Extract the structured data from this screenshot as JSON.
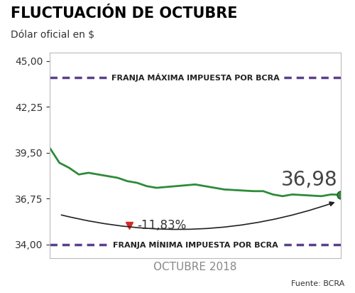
{
  "chart_data": {
    "type": "line",
    "title": "FLUCTUACIÓN DE OCTUBRE",
    "subtitle": "Dólar oficial en $",
    "x_label": "OCTUBRE 2018",
    "source": "Fuente: BCRA",
    "annotation": "-11,83%",
    "x": [
      1,
      2,
      3,
      4,
      5,
      8,
      9,
      10,
      11,
      12,
      16,
      17,
      18,
      19,
      22,
      23,
      24,
      25,
      26,
      29,
      30,
      31
    ],
    "xlim": [
      1,
      31
    ],
    "xticks": [],
    "ylim": [
      33.2,
      45.5
    ],
    "yticks": [
      {
        "value": 34.0,
        "label": "34,00"
      },
      {
        "value": 36.75,
        "label": "36,75"
      },
      {
        "value": 39.5,
        "label": "39,50"
      },
      {
        "value": 42.25,
        "label": "42,25"
      },
      {
        "value": 45.0,
        "label": "45,00"
      }
    ],
    "tick_labels": "y",
    "grid": false,
    "series": [
      {
        "name": "Dólar oficial",
        "type": "line",
        "color": "#2e8b3a",
        "line_style": "solid",
        "values": [
          39.8,
          38.9,
          38.6,
          38.2,
          38.3,
          38.0,
          37.8,
          37.7,
          37.5,
          37.4,
          37.6,
          37.5,
          37.4,
          37.3,
          37.2,
          37.2,
          37.0,
          36.9,
          37.0,
          36.9,
          37.0,
          36.98
        ],
        "value_labels": [
          null,
          null,
          null,
          null,
          null,
          null,
          null,
          null,
          null,
          null,
          null,
          null,
          null,
          null,
          null,
          null,
          null,
          null,
          null,
          null,
          null,
          "36,98"
        ]
      },
      {
        "name": "FRANJA MÁXIMA IMPUESTA POR BCRA",
        "type": "band",
        "color": "#5b3f8c",
        "line_style": "dashed",
        "values": [
          44.0,
          44.0,
          44.0,
          44.0,
          44.0,
          44.0,
          44.0,
          44.0,
          44.0,
          44.0,
          44.0,
          44.0,
          44.0,
          44.0,
          44.0,
          44.0,
          44.0,
          44.0,
          44.0,
          44.0,
          44.0,
          44.0
        ]
      },
      {
        "name": "FRANJA MÍNIMA IMPUESTA POR BCRA",
        "type": "band",
        "color": "#5b3f8c",
        "line_style": "dashed",
        "values": [
          34.0,
          34.0,
          34.0,
          34.0,
          34.0,
          34.0,
          34.0,
          34.0,
          34.0,
          34.0,
          34.0,
          34.0,
          34.0,
          34.0,
          34.0,
          34.0,
          34.0,
          34.0,
          34.0,
          34.0,
          34.0,
          34.0
        ]
      }
    ]
  }
}
